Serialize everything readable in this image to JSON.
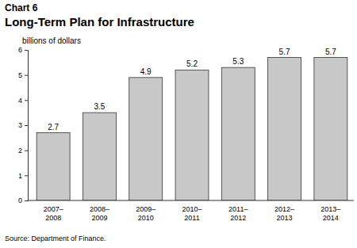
{
  "chart_data": {
    "type": "bar",
    "chart_label": "Chart 6",
    "title": "Long-Term Plan for Infrastructure",
    "y_label": "billions of dollars",
    "source": "Source: Department of Finance.",
    "categories": [
      "2007–2008",
      "2008–2009",
      "2009–2010",
      "2010–2011",
      "2011–2012",
      "2012–2013",
      "2013–2014"
    ],
    "values": [
      2.7,
      3.5,
      4.9,
      5.2,
      5.3,
      5.7,
      5.7
    ],
    "color": "#c8c8c8",
    "ylim": [
      0,
      6
    ],
    "yticks": [
      0,
      1,
      2,
      3,
      4,
      5,
      6
    ],
    "grid": false,
    "data_labels": true
  }
}
